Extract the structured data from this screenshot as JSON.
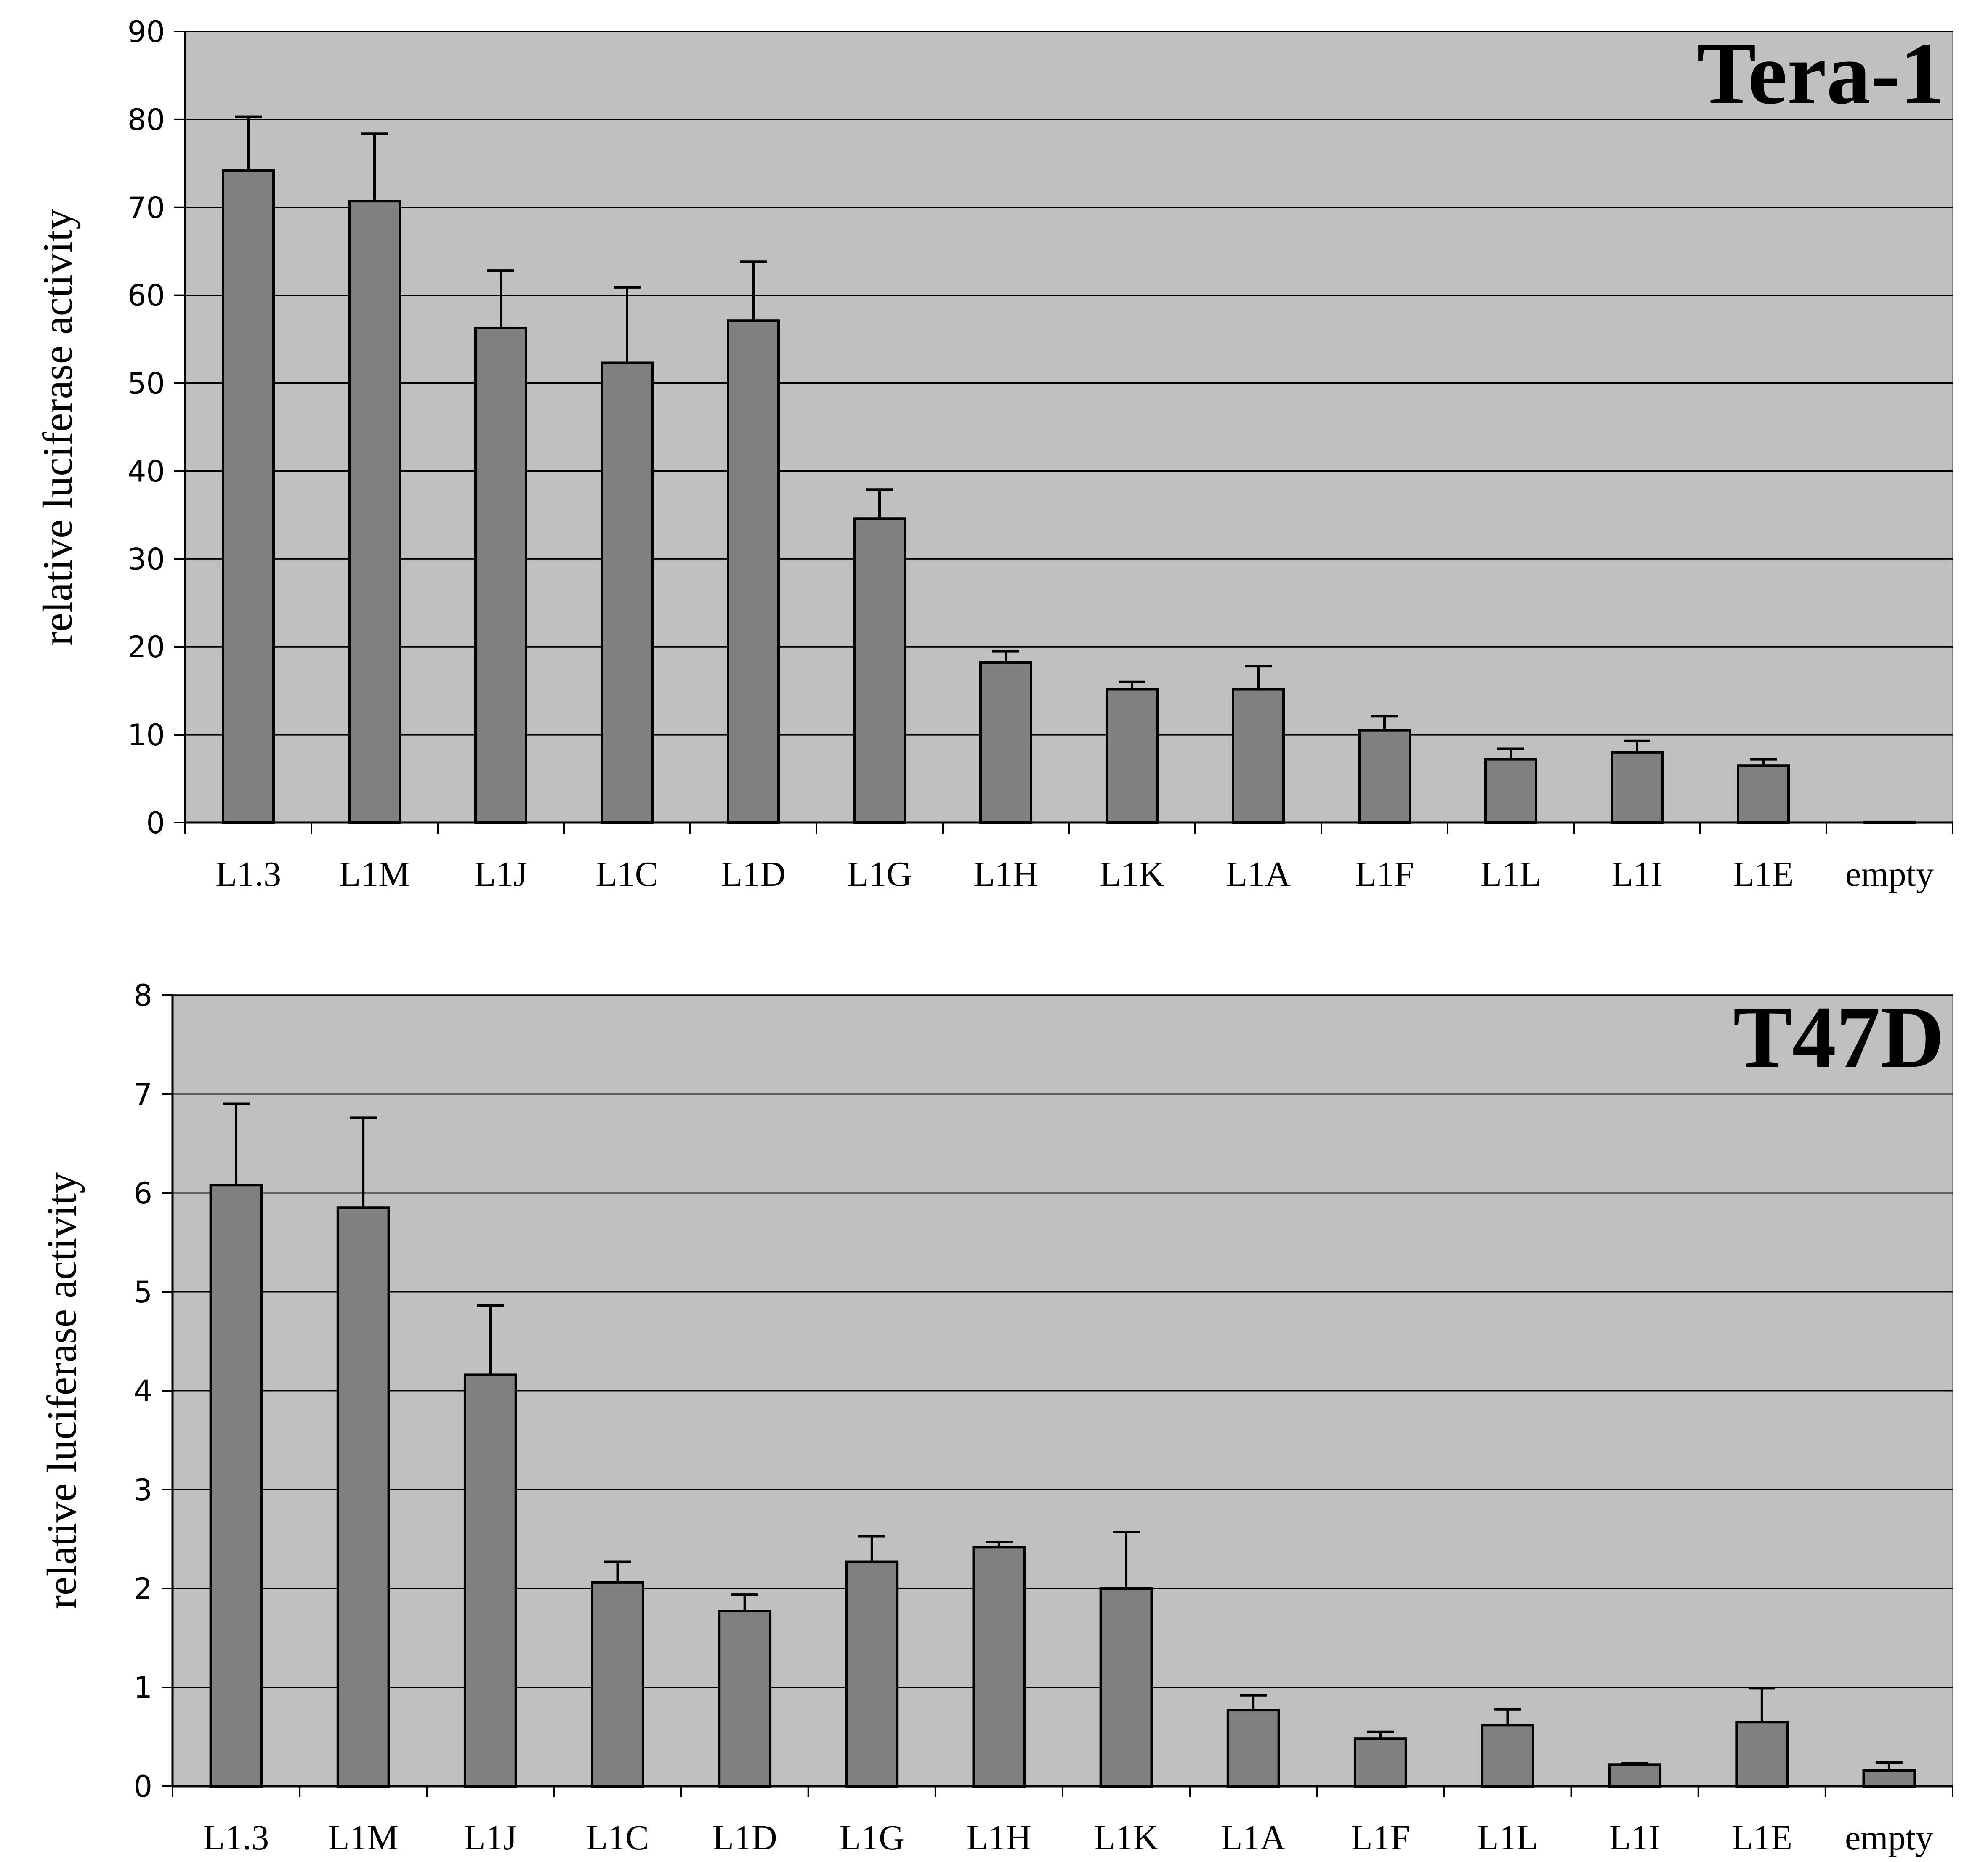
{
  "chart_data": [
    {
      "type": "bar",
      "title": "Tera-1",
      "xlabel": "",
      "ylabel": "relative luciferase activity",
      "ylim": [
        0,
        90
      ],
      "yticks": [
        0,
        10,
        20,
        30,
        40,
        50,
        60,
        70,
        80,
        90
      ],
      "grid": true,
      "categories": [
        "L1.3",
        "L1M",
        "L1J",
        "L1C",
        "L1D",
        "L1G",
        "L1H",
        "L1K",
        "L1A",
        "L1F",
        "L1L",
        "L1I",
        "L1E",
        "empty"
      ],
      "values": [
        74.2,
        70.7,
        56.3,
        52.3,
        57.1,
        34.6,
        18.2,
        15.2,
        15.2,
        10.5,
        7.2,
        8.0,
        6.5,
        0.1
      ],
      "errors": [
        6.1,
        7.7,
        6.5,
        8.6,
        6.7,
        3.3,
        1.3,
        0.8,
        2.6,
        1.6,
        1.2,
        1.3,
        0.7,
        0.0
      ],
      "colors": {
        "bar": "#808080",
        "plot_bg": "#c0c0c0"
      }
    },
    {
      "type": "bar",
      "title": "T47D",
      "xlabel": "",
      "ylabel": "relative luciferase activity",
      "ylim": [
        0,
        8
      ],
      "yticks": [
        0,
        1,
        2,
        3,
        4,
        5,
        6,
        7,
        8
      ],
      "grid": true,
      "categories": [
        "L1.3",
        "L1M",
        "L1J",
        "L1C",
        "L1D",
        "L1G",
        "L1H",
        "L1K",
        "L1A",
        "L1F",
        "L1L",
        "L1I",
        "L1E",
        "empty"
      ],
      "values": [
        6.08,
        5.85,
        4.16,
        2.06,
        1.77,
        2.27,
        2.42,
        2.0,
        0.77,
        0.48,
        0.62,
        0.22,
        0.65,
        0.16
      ],
      "errors": [
        0.82,
        0.91,
        0.7,
        0.21,
        0.17,
        0.26,
        0.05,
        0.57,
        0.15,
        0.07,
        0.16,
        0.01,
        0.34,
        0.08
      ],
      "colors": {
        "bar": "#808080",
        "plot_bg": "#c0c0c0"
      }
    }
  ]
}
